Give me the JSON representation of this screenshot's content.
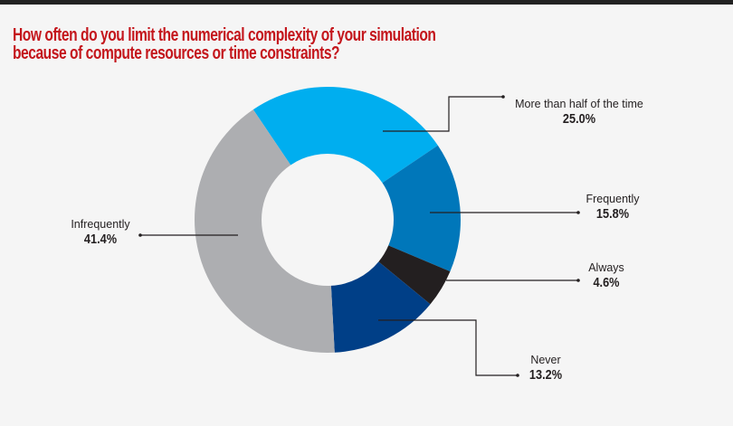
{
  "title_lines": [
    "How often do you limit the numerical complexity of your simulation",
    "because of compute resources or time constraints?"
  ],
  "chart_data": {
    "type": "pie",
    "subtype": "donut",
    "title": "How often do you limit the numerical complexity of your simulation because of compute resources or time constraints?",
    "unit": "%",
    "slices": [
      {
        "label": "More than half of the time",
        "value": 25.0,
        "display": "25.0%",
        "color": "#00aeef"
      },
      {
        "label": "Frequently",
        "value": 15.8,
        "display": "15.8%",
        "color": "#0077ba"
      },
      {
        "label": "Always",
        "value": 4.6,
        "display": "4.6%",
        "color": "#231f20"
      },
      {
        "label": "Never",
        "value": 13.2,
        "display": "13.2%",
        "color": "#003f87"
      },
      {
        "label": "Infrequently",
        "value": 41.4,
        "display": "41.4%",
        "color": "#adaeb1"
      }
    ],
    "legend": "leader-line labels"
  },
  "colors": {
    "title": "#c4161c",
    "background": "#f5f5f5",
    "top_bar": "#222222"
  }
}
